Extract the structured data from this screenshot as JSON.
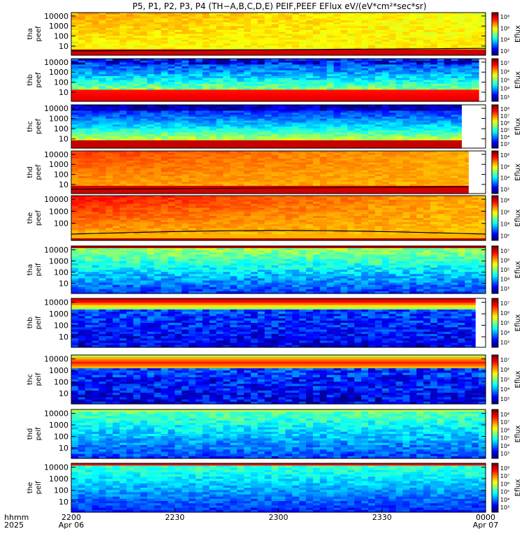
{
  "title": "P5, P1, P2, P3, P4 (TH−A,B,C,D,E) PEIF,PEEF EFlux eV/(eV*cm²*sec*sr)",
  "time_axis": {
    "row1_label": "hhmm",
    "row2_label": "2025",
    "ticks": [
      {
        "main": "2200",
        "sub": "Apr 06",
        "t": 0
      },
      {
        "main": "2230",
        "sub": "",
        "t": 30
      },
      {
        "main": "2300",
        "sub": "",
        "t": 60
      },
      {
        "main": "2330",
        "sub": "",
        "t": 90
      },
      {
        "main": "0000",
        "sub": "Apr 07",
        "t": 120
      }
    ]
  },
  "chart_data": [
    {
      "type": "heatmap",
      "ylabel_top": "tha",
      "ylabel_bottom": "peef",
      "yticks": [
        "10000",
        "1000",
        "100",
        "10"
      ],
      "cbar_label": "Eflux",
      "cbar_ticks": [
        "10⁸",
        "10⁶",
        "10⁴",
        "10²"
      ],
      "xrange": [
        0,
        120
      ],
      "data_end": 120,
      "profile": "peef_a",
      "overlay_line": true
    },
    {
      "type": "heatmap",
      "ylabel_top": "thb",
      "ylabel_bottom": "peef",
      "yticks": [
        "10000",
        "1000",
        "100",
        "10"
      ],
      "cbar_label": "Eflux",
      "cbar_ticks": [
        "10⁷",
        "10⁶",
        "10⁵",
        "10⁴",
        "10³"
      ],
      "xrange": [
        0,
        120
      ],
      "data_end": 118,
      "profile": "peef_b",
      "overlay_line": false
    },
    {
      "type": "heatmap",
      "ylabel_top": "thc",
      "ylabel_bottom": "peef",
      "yticks": [
        "10000",
        "1000",
        "100",
        "10"
      ],
      "cbar_label": "Eflux",
      "cbar_ticks": [
        "10⁸",
        "10⁷",
        "10⁶",
        "10⁵",
        "10⁴",
        "10³"
      ],
      "xrange": [
        0,
        120
      ],
      "data_end": 113,
      "profile": "peef_c",
      "overlay_line": false
    },
    {
      "type": "heatmap",
      "ylabel_top": "thd",
      "ylabel_bottom": "peef",
      "yticks": [
        "10000",
        "1000",
        "100",
        "10"
      ],
      "cbar_label": "Eflux",
      "cbar_ticks": [
        "10⁸",
        "10⁶",
        "10⁴",
        "10²"
      ],
      "xrange": [
        0,
        120
      ],
      "data_end": 115,
      "profile": "peef_d",
      "overlay_line": true
    },
    {
      "type": "heatmap",
      "ylabel_top": "the",
      "ylabel_bottom": "peef",
      "yticks": [
        "10000",
        "1000",
        "100"
      ],
      "cbar_label": "Eflux",
      "cbar_ticks": [
        "10⁸",
        "10⁶",
        "10⁴",
        "10²"
      ],
      "xrange": [
        0,
        120
      ],
      "data_end": 120,
      "profile": "peef_e",
      "overlay_line": true
    },
    {
      "type": "heatmap",
      "ylabel_top": "tha",
      "ylabel_bottom": "peif",
      "yticks": [
        "10000",
        "1000",
        "100",
        "10"
      ],
      "cbar_label": "Eflux",
      "cbar_ticks": [
        "10⁷",
        "10⁶",
        "10⁵",
        "10⁴",
        "10³"
      ],
      "xrange": [
        0,
        120
      ],
      "data_end": 120,
      "profile": "peif_a",
      "overlay_line": false
    },
    {
      "type": "heatmap",
      "ylabel_top": "thb",
      "ylabel_bottom": "peif",
      "yticks": [
        "10000",
        "1000",
        "100",
        "10"
      ],
      "cbar_label": "Eflux",
      "cbar_ticks": [
        "10⁷",
        "10⁶",
        "10⁵",
        "10⁴",
        "10³"
      ],
      "xrange": [
        0,
        120
      ],
      "data_end": 117,
      "profile": "peif_b",
      "overlay_line": false
    },
    {
      "type": "heatmap",
      "ylabel_top": "thc",
      "ylabel_bottom": "peif",
      "yticks": [
        "10000",
        "1000",
        "100",
        "10"
      ],
      "cbar_label": "Eflux",
      "cbar_ticks": [
        "10⁷",
        "10⁶",
        "10⁵",
        "10⁴",
        "10³"
      ],
      "xrange": [
        0,
        120
      ],
      "data_end": 120,
      "profile": "peif_c",
      "overlay_line": false
    },
    {
      "type": "heatmap",
      "ylabel_top": "thd",
      "ylabel_bottom": "peif",
      "yticks": [
        "10000",
        "1000",
        "100",
        "10"
      ],
      "cbar_label": "Eflux",
      "cbar_ticks": [
        "10⁸",
        "10⁷",
        "10⁶",
        "10⁵",
        "10⁴",
        "10³"
      ],
      "xrange": [
        0,
        120
      ],
      "data_end": 120,
      "profile": "peif_d",
      "overlay_line": false
    },
    {
      "type": "heatmap",
      "ylabel_top": "the",
      "ylabel_bottom": "peif",
      "yticks": [
        "10000",
        "1000",
        "100",
        "10"
      ],
      "cbar_label": "Eflux",
      "cbar_ticks": [
        "10⁸",
        "10⁷",
        "10⁶",
        "10⁵",
        "10⁴",
        "10³"
      ],
      "xrange": [
        0,
        120
      ],
      "data_end": 120,
      "profile": "peif_e",
      "overlay_line": false
    }
  ]
}
